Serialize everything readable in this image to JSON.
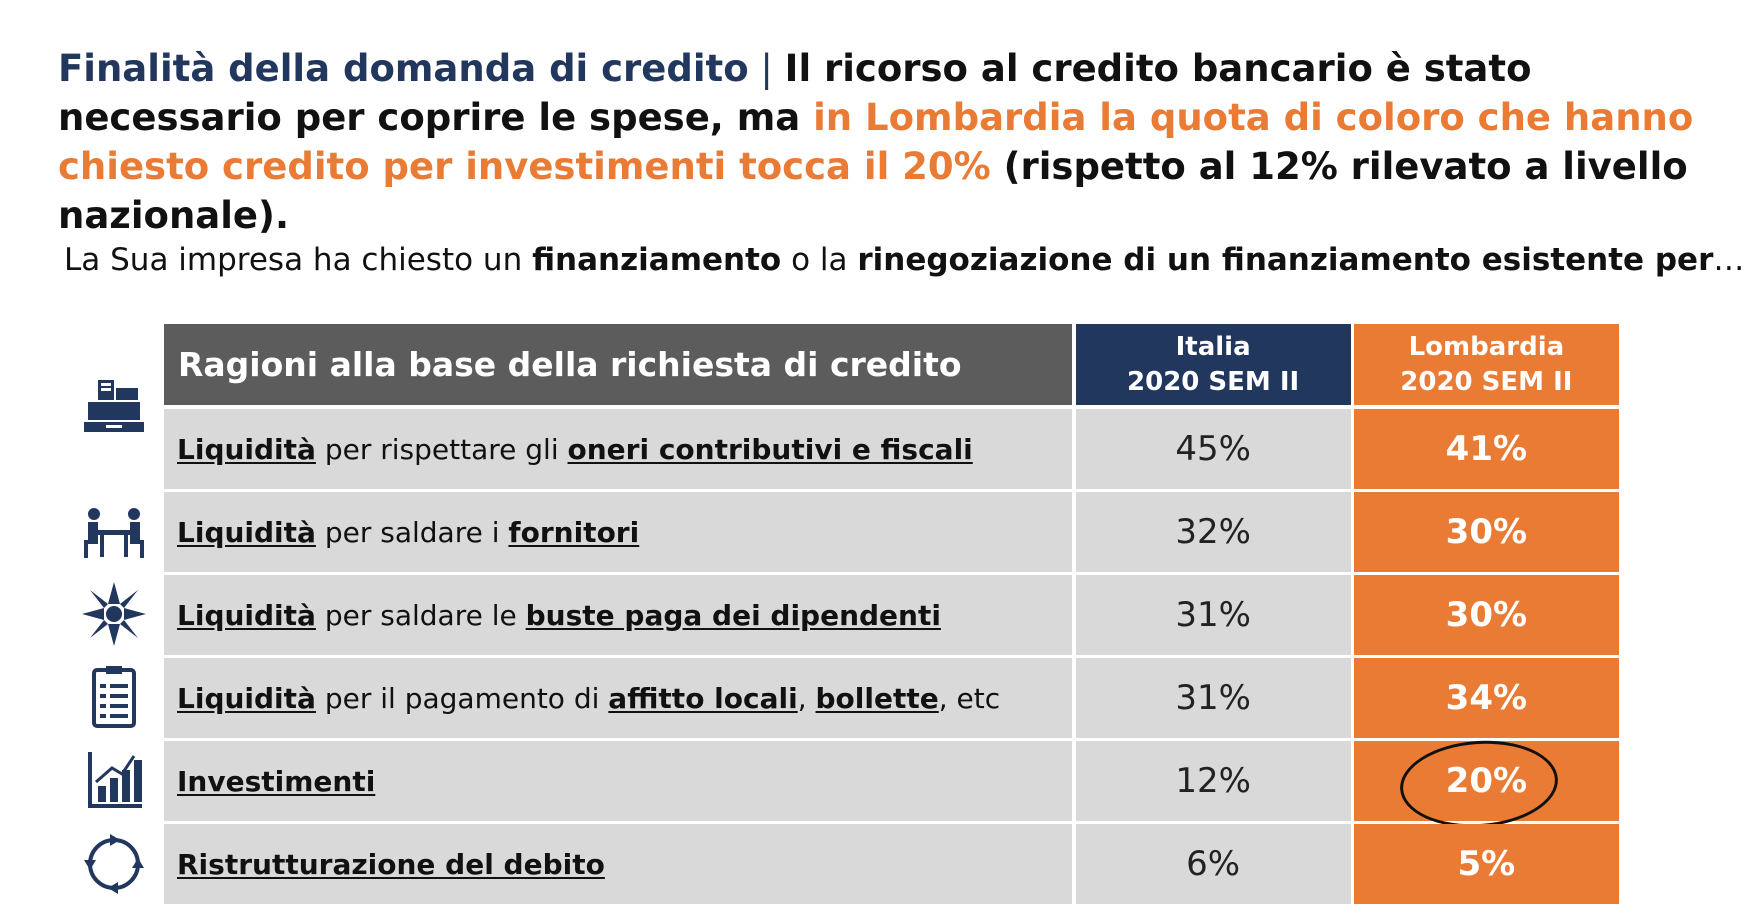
{
  "headline": {
    "part1": "Finalità della domanda di credito",
    "separator": " | ",
    "part2": "Il ricorso al credito bancario è stato necessario per coprire le spese, ma ",
    "part3": "in Lombardia la quota di coloro che hanno chiesto credito per investimenti tocca il 20%",
    "part4": " (rispetto al 12% rilevato a livello nazionale)."
  },
  "question": {
    "p1": "La Sua impresa ha chiesto un ",
    "b1": "finanziamento",
    "p2": " o la ",
    "b2": "rinegoziazione di un finanziamento esistente per",
    "p3": "…"
  },
  "table": {
    "header": {
      "label": "Ragioni alla base della richiesta di credito",
      "italia_line1": "Italia",
      "italia_line2": "2020 SEM II",
      "lombardia_line1": "Lombardia",
      "lombardia_line2": "2020 SEM II"
    },
    "rows": [
      {
        "icon": "cash-register-icon",
        "segments": [
          {
            "t": "Liquidità",
            "u": true
          },
          {
            "t": " per rispettare gli ",
            "u": false
          },
          {
            "t": "oneri contributivi e fiscali",
            "u": true
          }
        ],
        "italia": "45%",
        "lombardia": "41%"
      },
      {
        "icon": "meeting-table-icon",
        "segments": [
          {
            "t": "Liquidità",
            "u": true
          },
          {
            "t": " per saldare i ",
            "u": false
          },
          {
            "t": "fornitori",
            "u": true
          }
        ],
        "italia": "32%",
        "lombardia": "30%"
      },
      {
        "icon": "team-hands-icon",
        "segments": [
          {
            "t": "Liquidità",
            "u": true
          },
          {
            "t": " per saldare le ",
            "u": false
          },
          {
            "t": "buste paga dei dipendenti",
            "u": true
          }
        ],
        "italia": "31%",
        "lombardia": "30%"
      },
      {
        "icon": "clipboard-checklist-icon",
        "segments": [
          {
            "t": "Liquidità",
            "u": true
          },
          {
            "t": " per il pagamento di ",
            "u": false
          },
          {
            "t": "affitto locali",
            "u": true
          },
          {
            "t": ", ",
            "u": false
          },
          {
            "t": "bollette",
            "u": true
          },
          {
            "t": ", etc",
            "u": false
          }
        ],
        "italia": "31%",
        "lombardia": "34%"
      },
      {
        "icon": "bar-chart-growth-icon",
        "segments": [
          {
            "t": "Investimenti",
            "u": true
          }
        ],
        "italia": "12%",
        "lombardia": "20%"
      },
      {
        "icon": "refresh-cycle-icon",
        "segments": [
          {
            "t": "Ristrutturazione del debito",
            "u": true
          }
        ],
        "italia": "6%",
        "lombardia": "5%"
      }
    ]
  },
  "colors": {
    "navy": "#22375e",
    "orange": "#ea7b34",
    "grey_header": "#5c5c5c",
    "row_bg": "#d9d9d9"
  }
}
